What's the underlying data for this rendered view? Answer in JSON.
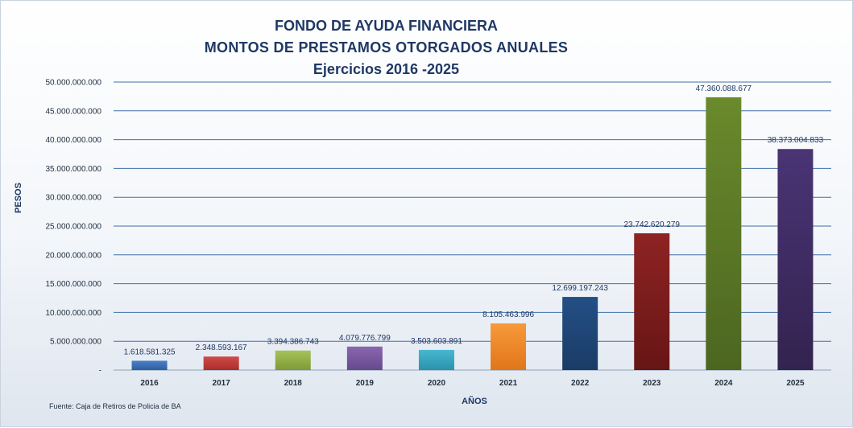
{
  "chart_data": {
    "type": "bar",
    "title": "FONDO DE AYUDA FINANCIERA",
    "subtitle": "MONTOS  DE PRESTAMOS OTORGADOS  ANUALES",
    "subtitle2": "Ejercicios  2016 -2025",
    "xlabel": "AÑOS",
    "ylabel": "PESOS",
    "categories": [
      "2016",
      "2017",
      "2018",
      "2019",
      "2020",
      "2021",
      "2022",
      "2023",
      "2024",
      "2025"
    ],
    "values": [
      1618581325,
      2348593167,
      3394386743,
      4079776799,
      3503603891,
      8105463996,
      12699197243,
      23742620279,
      47360088677,
      38373004833
    ],
    "data_labels": [
      "1.618.581.325",
      "2.348.593.167",
      "3.394.386.743",
      "4.079.776.799",
      "3.503.603.891",
      "8.105.463.996",
      "12.699.197.243",
      "23.742.620.279",
      "47.360.088.677",
      "38.373.004.833"
    ],
    "bar_colors": [
      [
        "#4a7fc8",
        "#2f5f9e"
      ],
      [
        "#cf4a47",
        "#a92f2c"
      ],
      [
        "#a6c35a",
        "#7f9a36"
      ],
      [
        "#8a67b0",
        "#664a8c"
      ],
      [
        "#47b8d0",
        "#2a92aa"
      ],
      [
        "#f79a3a",
        "#e0761a"
      ],
      [
        "#234f85",
        "#1a3c66"
      ],
      [
        "#8e2323",
        "#671515"
      ],
      [
        "#6a8a2c",
        "#4c6620"
      ],
      [
        "#4a3475",
        "#33234f"
      ]
    ],
    "ylim": [
      0,
      50000000000
    ],
    "yticks": [
      0,
      5000000000,
      10000000000,
      15000000000,
      20000000000,
      25000000000,
      30000000000,
      35000000000,
      40000000000,
      45000000000,
      50000000000
    ],
    "ytick_labels": [
      "-",
      "5.000.000.000",
      "10.000.000.000",
      "15.000.000.000",
      "20.000.000.000",
      "25.000.000.000",
      "30.000.000.000",
      "35.000.000.000",
      "40.000.000.000",
      "45.000.000.000",
      "50.000.000.000"
    ],
    "grid": true,
    "gridline_color": "#3f6fa8",
    "legend": "none"
  },
  "footer": {
    "source": "Fuente: Caja de Retiros de Policia de BA"
  }
}
